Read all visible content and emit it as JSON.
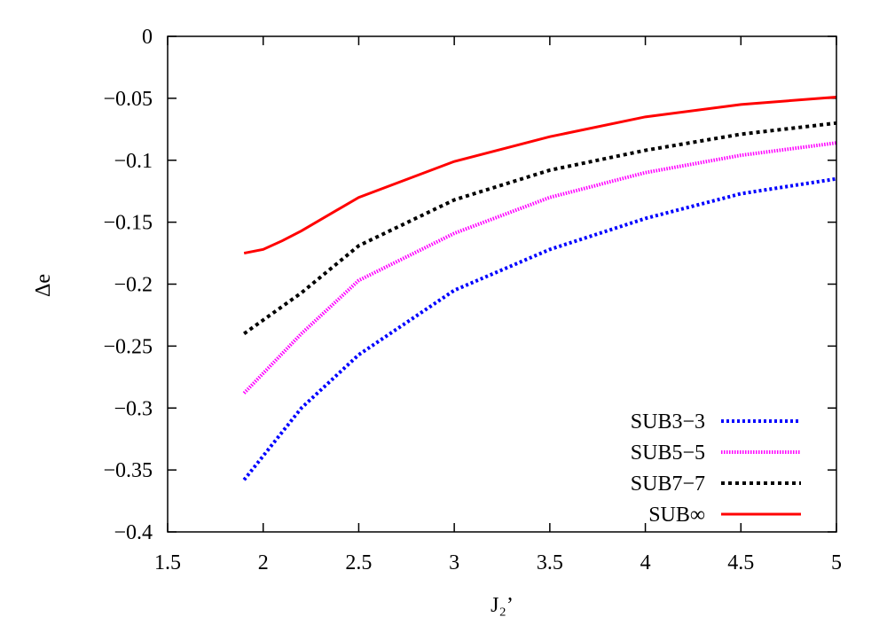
{
  "chart_data": {
    "type": "line",
    "title": "",
    "xlabel": "J₂’",
    "ylabel": "Δe",
    "xlim": [
      1.5,
      5
    ],
    "ylim": [
      -0.4,
      0
    ],
    "xticks": [
      "1.5",
      "2",
      "2.5",
      "3",
      "3.5",
      "4",
      "4.5",
      "5"
    ],
    "yticks": [
      "0",
      "−0.05",
      "−0.1",
      "−0.15",
      "−0.2",
      "−0.25",
      "−0.3",
      "−0.35",
      "−0.4"
    ],
    "grid": false,
    "legend_position": "bottom-right",
    "series": [
      {
        "name": "SUB3−3",
        "color": "#0000ff",
        "style": "dotted",
        "x": [
          1.9,
          2.2,
          2.5,
          3,
          3.5,
          4,
          4.5,
          5
        ],
        "y": [
          -0.358,
          -0.3,
          -0.257,
          -0.205,
          -0.172,
          -0.147,
          -0.127,
          -0.115
        ]
      },
      {
        "name": "SUB5−5",
        "color": "#ff00ff",
        "style": "fine-dash",
        "x": [
          1.9,
          2.2,
          2.5,
          3,
          3.5,
          4,
          4.5,
          5
        ],
        "y": [
          -0.288,
          -0.24,
          -0.197,
          -0.159,
          -0.13,
          -0.11,
          -0.096,
          -0.086
        ]
      },
      {
        "name": "SUB7−7",
        "color": "#000000",
        "style": "dashed",
        "x": [
          1.9,
          2.2,
          2.5,
          3,
          3.5,
          4,
          4.5,
          5
        ],
        "y": [
          -0.24,
          -0.207,
          -0.169,
          -0.132,
          -0.108,
          -0.092,
          -0.079,
          -0.07
        ]
      },
      {
        "name": "SUB∞",
        "color": "#ff0000",
        "style": "solid",
        "x": [
          1.9,
          2,
          2.1,
          2.2,
          2.5,
          3,
          3.5,
          4,
          4.5,
          5
        ],
        "y": [
          -0.175,
          -0.172,
          -0.165,
          -0.157,
          -0.13,
          -0.101,
          -0.081,
          -0.065,
          -0.055,
          -0.049
        ]
      }
    ]
  }
}
